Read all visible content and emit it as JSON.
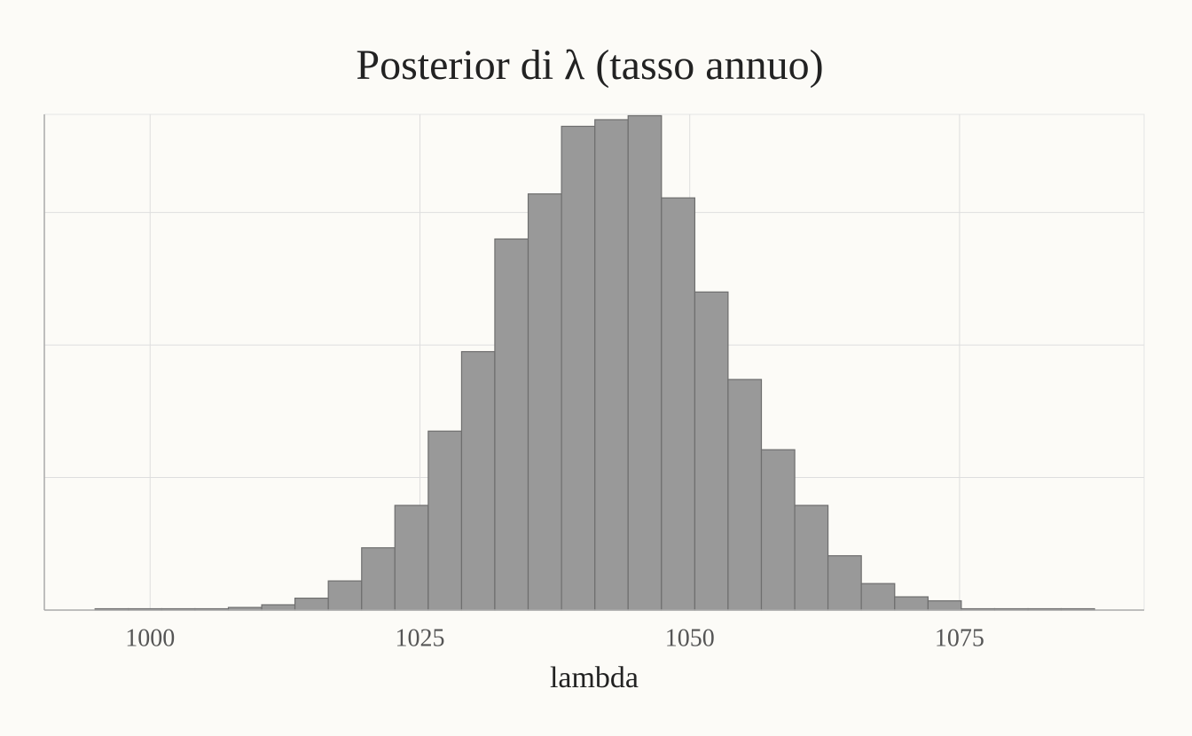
{
  "chart_data": {
    "type": "histogram",
    "title": "Posterior di λ (tasso annuo)",
    "xlabel": "lambda",
    "bins": [
      994.9,
      997.99,
      1001.07,
      1004.16,
      1007.25,
      1010.34,
      1013.42,
      1016.51,
      1019.6,
      1022.68,
      1025.77,
      1028.86,
      1031.94,
      1035.03,
      1038.12,
      1041.21,
      1044.29,
      1047.38,
      1050.47,
      1053.55,
      1056.64,
      1059.73,
      1062.81,
      1065.9,
      1068.99,
      1072.08,
      1075.16,
      1078.25,
      1081.34,
      1084.42,
      1087.51
    ],
    "values": [
      1,
      1,
      1,
      1,
      2,
      4,
      9,
      22,
      47,
      79,
      135,
      195,
      280,
      314,
      365,
      370,
      373,
      311,
      240,
      174,
      121,
      79,
      41,
      20,
      10,
      7,
      1,
      1,
      1,
      1
    ],
    "color": "#999999",
    "edgecolor": "#6e6e6e",
    "xlim": [
      990.2,
      1092.1
    ],
    "xticks": [
      1000,
      1025,
      1050,
      1075
    ],
    "ylim": [
      0,
      374
    ],
    "ygrid": [
      0,
      100,
      200,
      300
    ],
    "grid": true
  }
}
